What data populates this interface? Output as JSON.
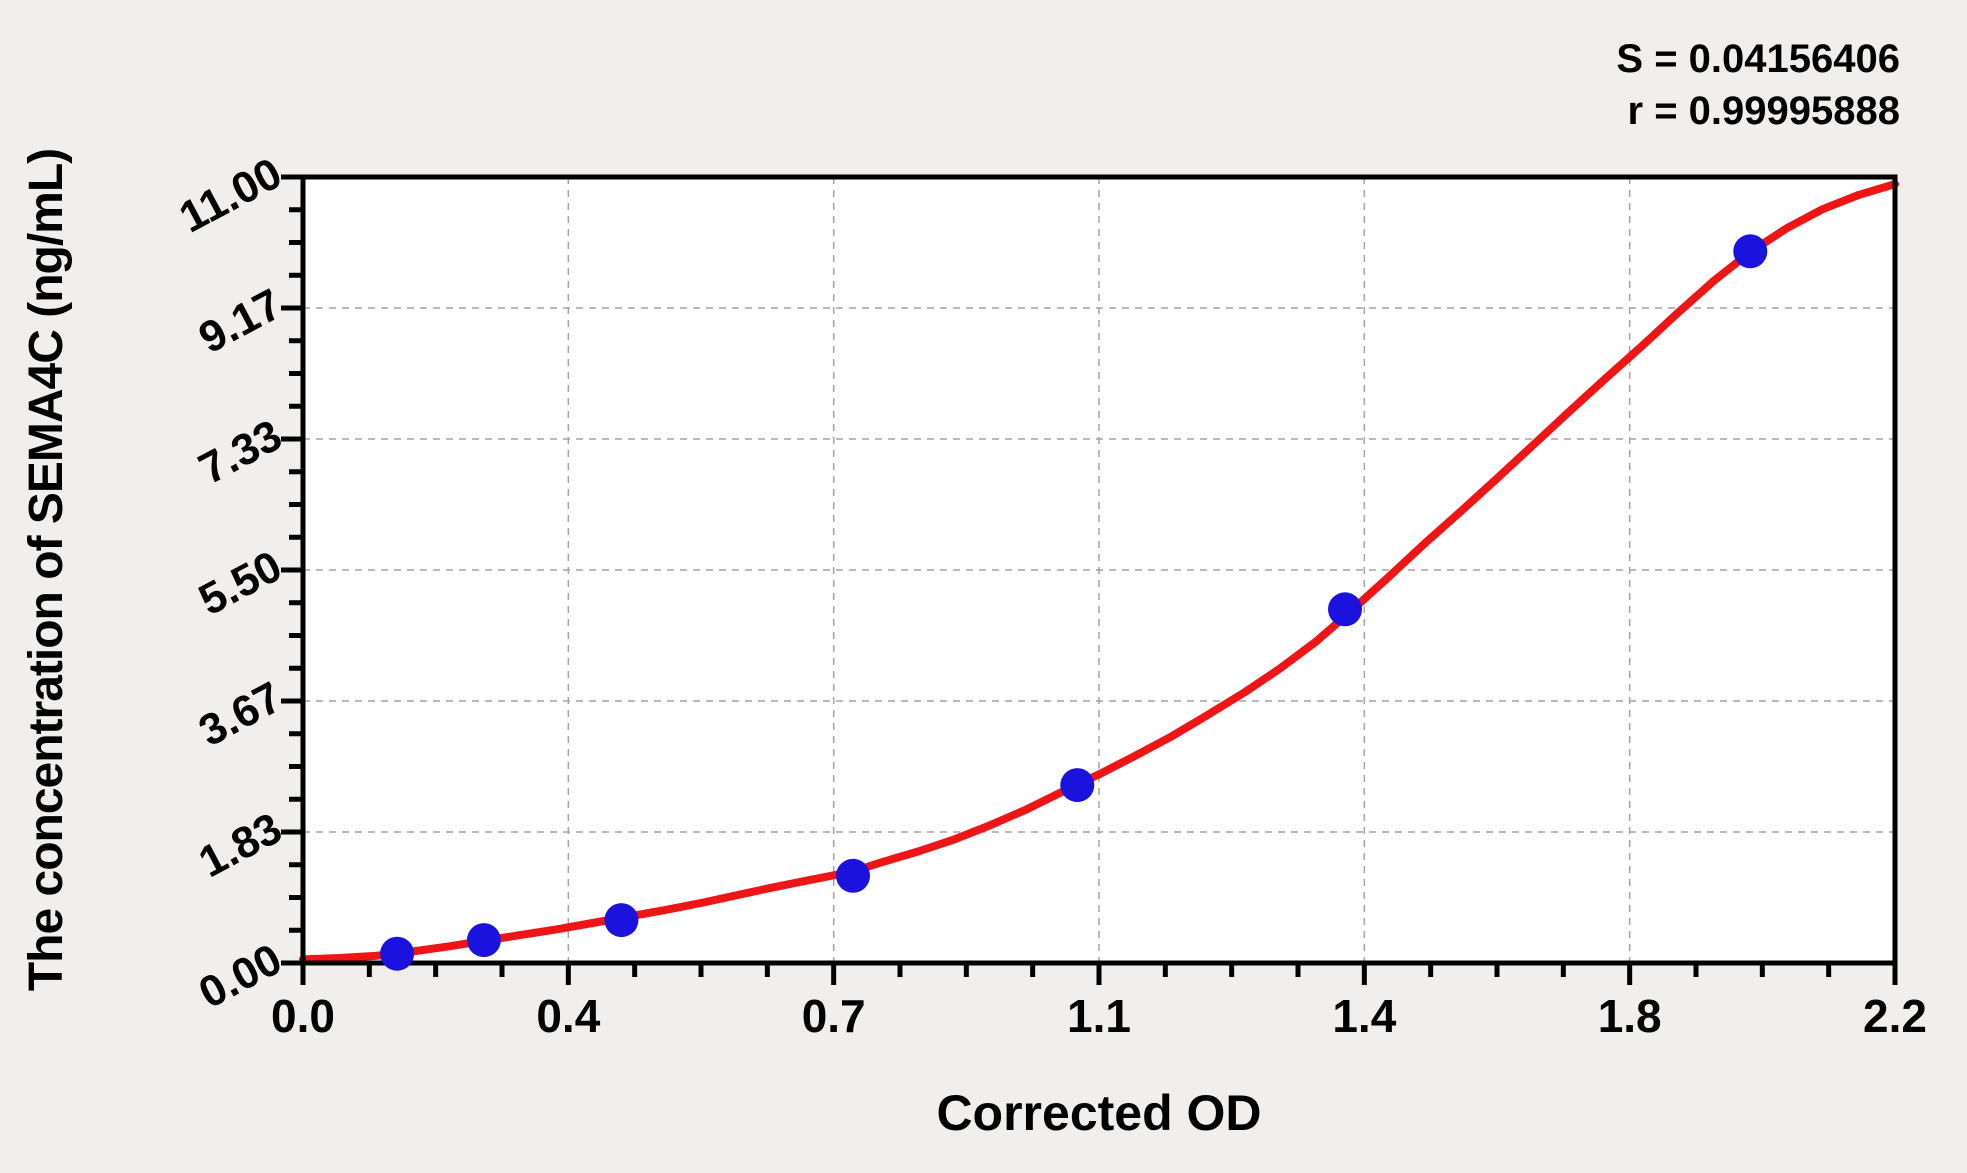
{
  "annotations": {
    "s": "S = 0.04156406",
    "r": "r = 0.99995888"
  },
  "chart_data": {
    "type": "scatter",
    "title": "",
    "xlabel": "Corrected OD",
    "ylabel": "The concentration of SEMA4C (ng/mL)",
    "xlim": [
      0,
      2.2
    ],
    "ylim": [
      0,
      11
    ],
    "x_tick_labels": [
      "0.0",
      "0.4",
      "0.7",
      "1.1",
      "1.4",
      "1.8",
      "2.2"
    ],
    "y_tick_labels": [
      "0.00",
      "1.83",
      "3.67",
      "5.50",
      "7.33",
      "9.17",
      "11.00"
    ],
    "minor_ticks_between_majors": 3,
    "grid": {
      "style": "dashed",
      "at": "major-ticks",
      "color": "#a3a3a3"
    },
    "legend": null,
    "series": [
      {
        "name": "standard-points",
        "type": "scatter",
        "color": "#1b13dd",
        "points": [
          [
            0.13,
            0.13
          ],
          [
            0.25,
            0.32
          ],
          [
            0.44,
            0.6
          ],
          [
            0.76,
            1.22
          ],
          [
            1.07,
            2.49
          ],
          [
            1.44,
            4.95
          ],
          [
            2.0,
            9.96
          ]
        ]
      },
      {
        "name": "fitted-curve",
        "type": "line",
        "color": "#ed1515",
        "points": [
          [
            0.0,
            0.05
          ],
          [
            0.05,
            0.07
          ],
          [
            0.1,
            0.1
          ],
          [
            0.15,
            0.16
          ],
          [
            0.2,
            0.23
          ],
          [
            0.25,
            0.31
          ],
          [
            0.3,
            0.39
          ],
          [
            0.35,
            0.47
          ],
          [
            0.4,
            0.56
          ],
          [
            0.45,
            0.65
          ],
          [
            0.5,
            0.74
          ],
          [
            0.55,
            0.84
          ],
          [
            0.6,
            0.95
          ],
          [
            0.65,
            1.06
          ],
          [
            0.7,
            1.16
          ],
          [
            0.76,
            1.28
          ],
          [
            0.8,
            1.41
          ],
          [
            0.85,
            1.56
          ],
          [
            0.9,
            1.73
          ],
          [
            0.95,
            1.93
          ],
          [
            1.0,
            2.15
          ],
          [
            1.07,
            2.5
          ],
          [
            1.1,
            2.64
          ],
          [
            1.15,
            2.9
          ],
          [
            1.2,
            3.17
          ],
          [
            1.25,
            3.47
          ],
          [
            1.3,
            3.78
          ],
          [
            1.35,
            4.12
          ],
          [
            1.4,
            4.5
          ],
          [
            1.44,
            4.85
          ],
          [
            1.5,
            5.4
          ],
          [
            1.55,
            5.87
          ],
          [
            1.6,
            6.32
          ],
          [
            1.65,
            6.78
          ],
          [
            1.7,
            7.25
          ],
          [
            1.75,
            7.72
          ],
          [
            1.8,
            8.18
          ],
          [
            1.85,
            8.63
          ],
          [
            1.9,
            9.1
          ],
          [
            1.95,
            9.55
          ],
          [
            2.0,
            9.95
          ],
          [
            2.05,
            10.28
          ],
          [
            2.1,
            10.55
          ],
          [
            2.15,
            10.75
          ],
          [
            2.2,
            10.9
          ]
        ]
      }
    ]
  },
  "colors": {
    "background": "#f0efed",
    "plot_background": "#ffffff",
    "axis": "#000000",
    "grid": "#a3a3a3",
    "curve": "#ed1515",
    "point": "#1b13dd"
  }
}
